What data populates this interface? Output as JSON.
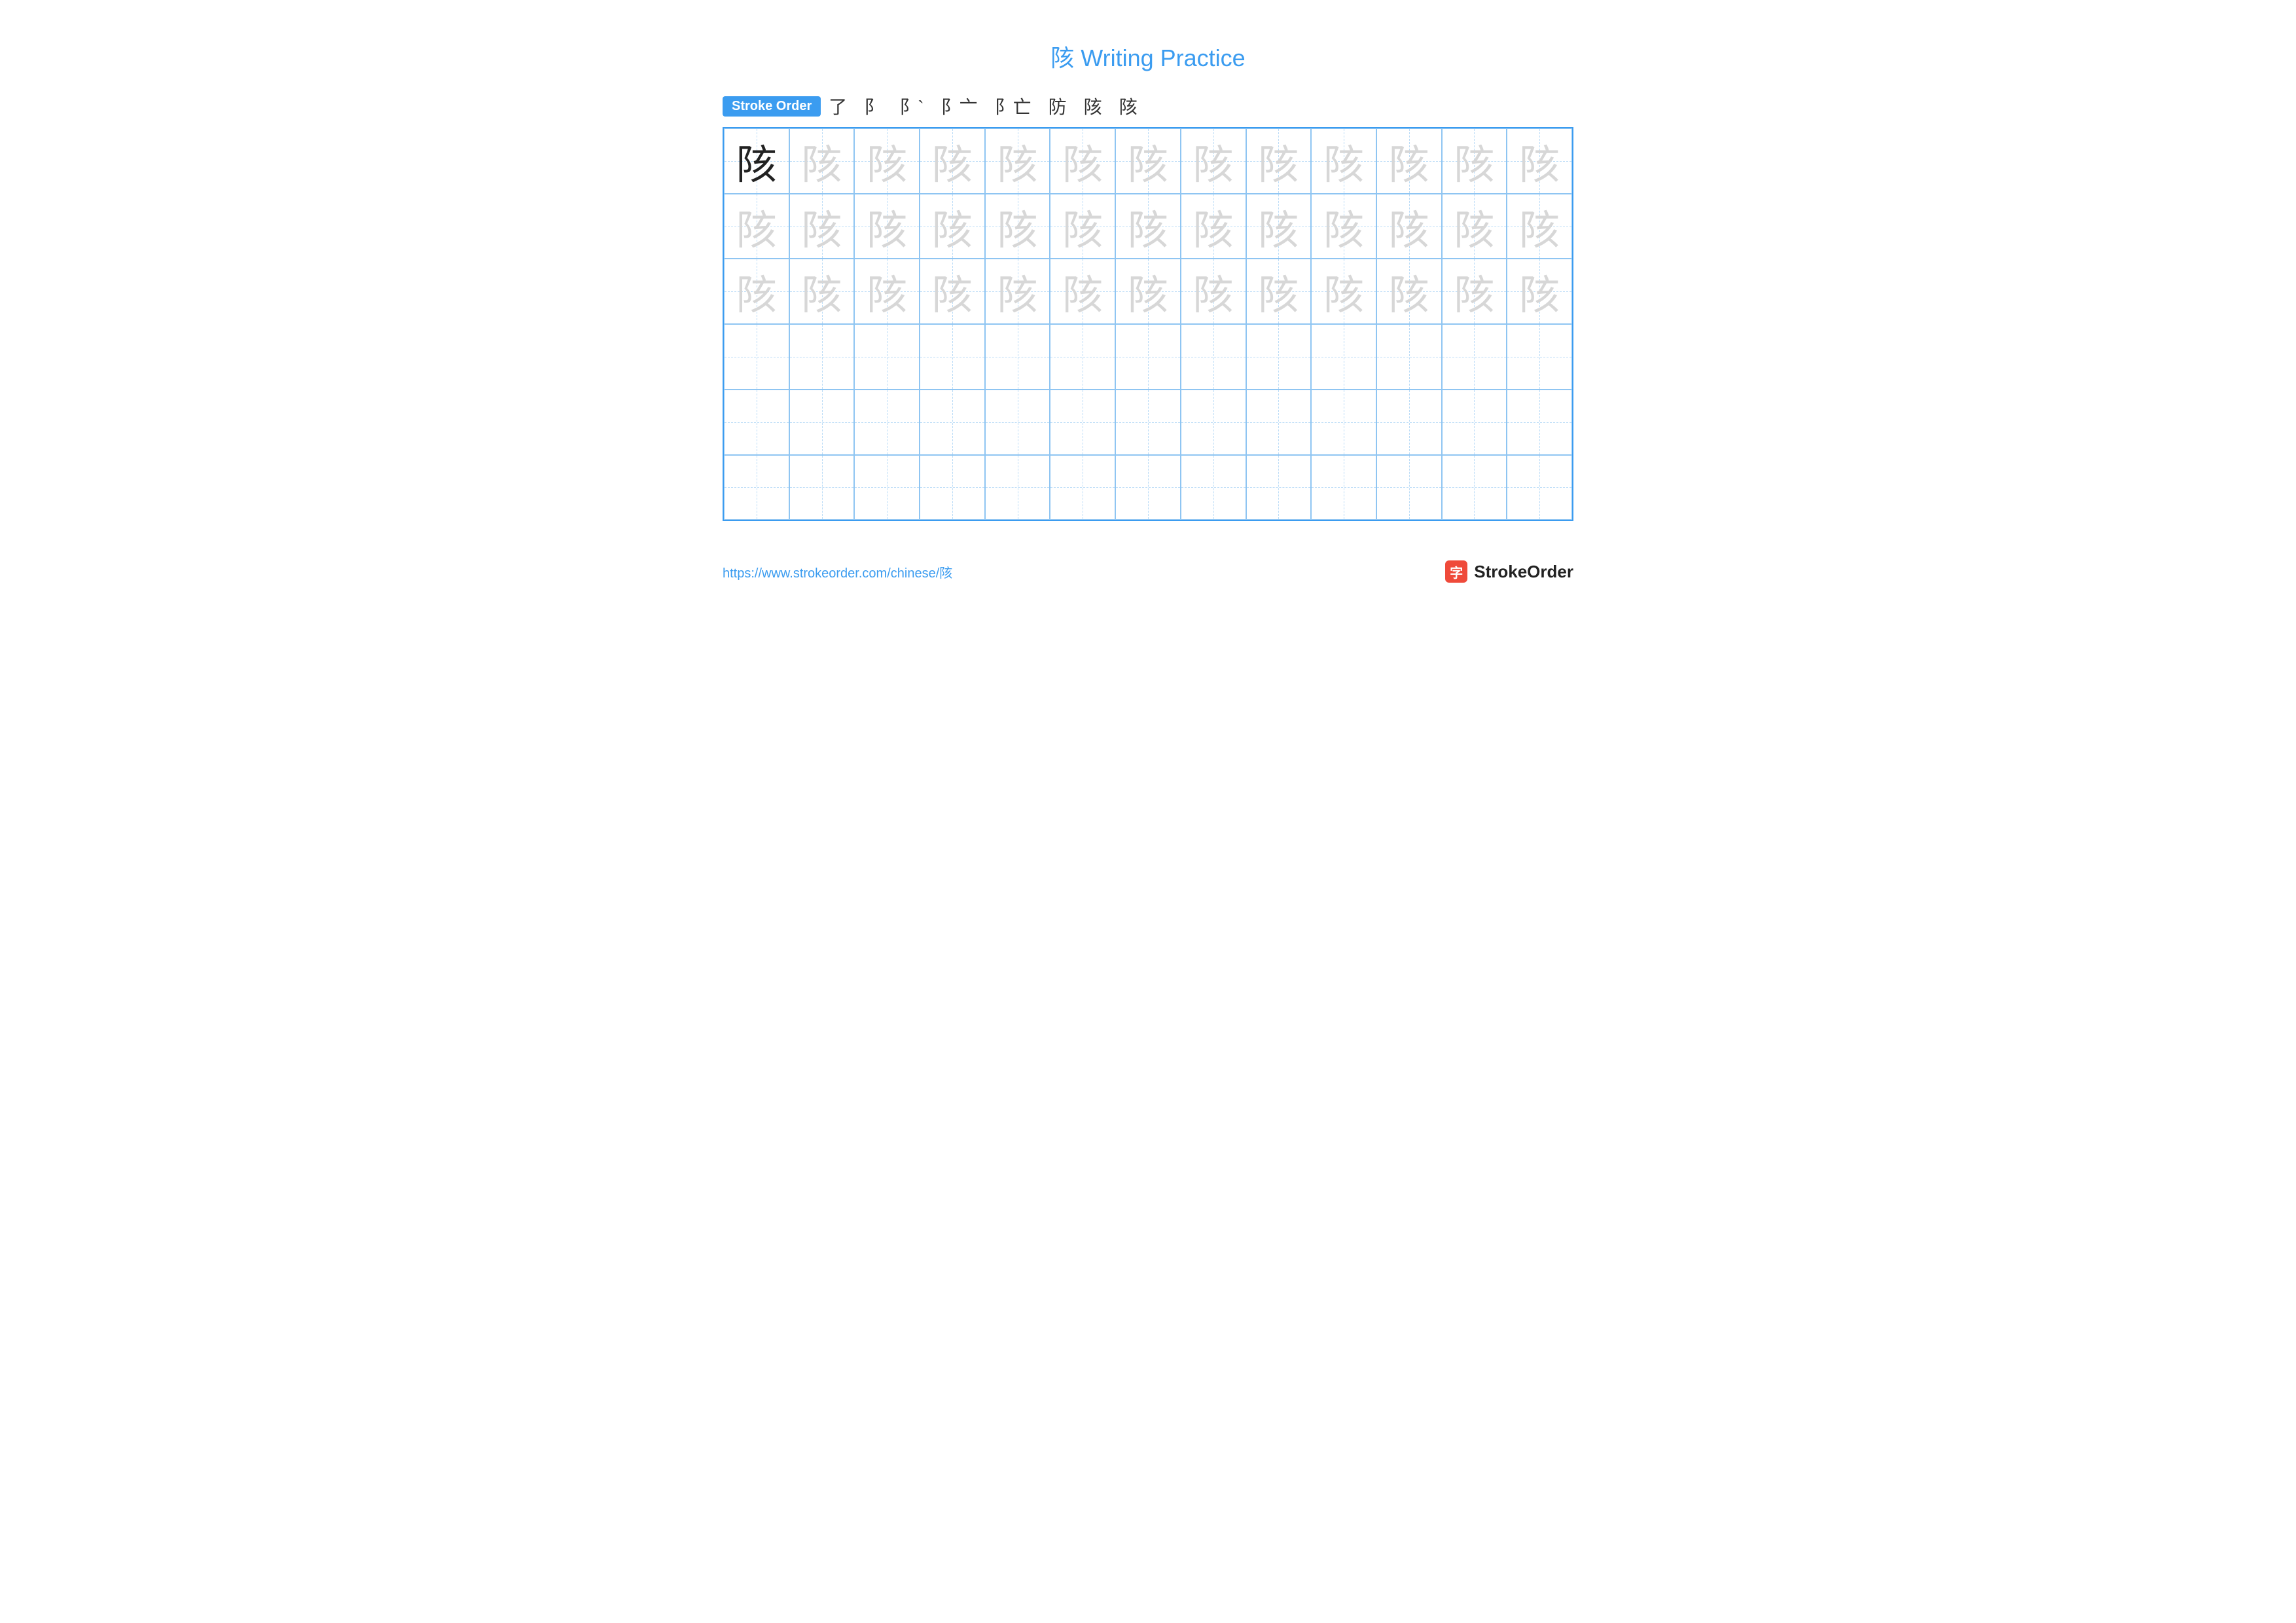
{
  "title": "陔 Writing Practice",
  "title_color": "#3b9cf0",
  "title_fontsize": 36,
  "stroke_order": {
    "label": "Stroke Order",
    "label_bg": "#3b9cf0",
    "label_color": "#ffffff",
    "steps": [
      "了",
      "阝",
      "阝`",
      "阝亠",
      "阝亡",
      "防",
      "陔",
      "陔"
    ],
    "step_color": "#333333",
    "step_highlight_color": "#d0342c"
  },
  "grid": {
    "cols": 13,
    "rows": 6,
    "border_color": "#3b9cf0",
    "cell_border_color": "#8fc5f2",
    "guide_dash_color": "#8fc5f2",
    "cell_font_size": 62,
    "model_char": "陔",
    "model_color": "#222222",
    "trace_color": "#d7d7d7",
    "trace_rows": 3,
    "empty_rows": 3
  },
  "footer": {
    "url": "https://www.strokeorder.com/chinese/陔",
    "url_color": "#3b9cf0",
    "brand": "StrokeOrder",
    "brand_color": "#222222",
    "logo_mark_bg": "#ef4a3a",
    "logo_mark_char": "字"
  },
  "background_color": "#ffffff"
}
